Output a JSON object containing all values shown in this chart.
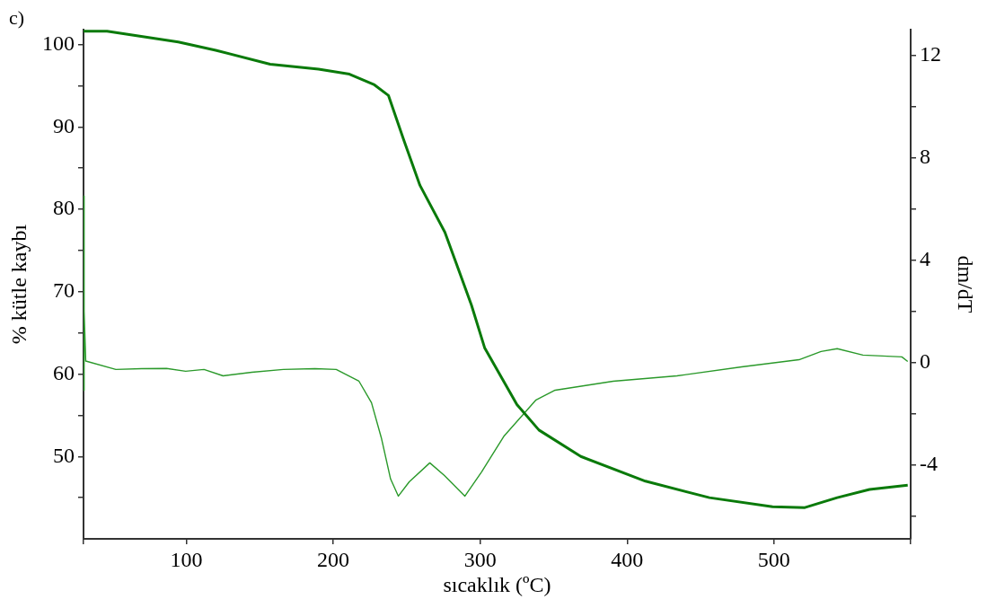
{
  "chart_data": {
    "type": "line",
    "xlabel": "sıcaklık (ºC)",
    "ylabel": "% kütle kaybı",
    "y2label": "dm/dT",
    "annotations": [
      "c)"
    ],
    "marker": "none",
    "xlim": [
      30,
      593
    ],
    "xticks": [
      {
        "value": 30,
        "label": null
      },
      100,
      200,
      300,
      400,
      500,
      {
        "value": 593,
        "label": null
      }
    ],
    "ylim": [
      40,
      101.8
    ],
    "yticks": [
      {
        "value": 45,
        "label": null
      },
      50,
      {
        "value": 55,
        "label": null
      },
      60,
      {
        "value": 65,
        "label": null
      },
      70,
      {
        "value": 75,
        "label": null
      },
      80,
      {
        "value": 85,
        "label": null
      },
      90,
      {
        "value": 95,
        "label": null
      },
      100
    ],
    "y2lim": [
      -6.9,
      13
    ],
    "y2ticks": [
      {
        "value": -6,
        "label": null
      },
      -4,
      {
        "value": -2,
        "label": null
      },
      0,
      {
        "value": 2,
        "label": null
      },
      4,
      {
        "value": 6,
        "label": null
      },
      8,
      {
        "value": 10,
        "label": null
      },
      12
    ],
    "series": [
      {
        "color": "#0a7a0a",
        "x": [
          30,
          46,
          94.5,
          120,
          157,
          190,
          211,
          228,
          237.6,
          248,
          259,
          276,
          294,
          303,
          325,
          340,
          368.5,
          412.5,
          456,
          499,
          521,
          543,
          565,
          591
        ],
        "values": [
          101.6,
          101.6,
          100.3,
          99.3,
          97.6,
          97.0,
          96.4,
          95.1,
          93.8,
          88.4,
          82.9,
          77.2,
          68.4,
          63.2,
          56.3,
          53.2,
          50.0,
          47.0,
          45.0,
          43.9,
          43.8,
          45.0,
          46.0,
          46.5
        ]
      },
      {
        "color": "#2a992a",
        "axis": "y2",
        "x": [
          30,
          30.2,
          30.6,
          31.5,
          52,
          69.5,
          86.5,
          99.5,
          112,
          125,
          144.6,
          166,
          187.5,
          202,
          217.5,
          226,
          232.7,
          239,
          244.3,
          251.7,
          265.7,
          275.5,
          289.6,
          301,
          316,
          338,
          351,
          390.5,
          434,
          478,
          517,
          532,
          543,
          560.5,
          587,
          591
        ],
        "values": [
          6.5,
          -1.1,
          2.0,
          0.05,
          -0.28,
          -0.25,
          -0.24,
          -0.35,
          -0.28,
          -0.53,
          -0.39,
          -0.28,
          -0.25,
          -0.28,
          -0.74,
          -1.58,
          -2.95,
          -4.56,
          -5.23,
          -4.67,
          -3.93,
          -4.42,
          -5.23,
          -4.28,
          -2.9,
          -1.47,
          -1.09,
          -0.74,
          -0.53,
          -0.18,
          0.1,
          0.42,
          0.53,
          0.28,
          0.21,
          0.03
        ]
      }
    ]
  }
}
